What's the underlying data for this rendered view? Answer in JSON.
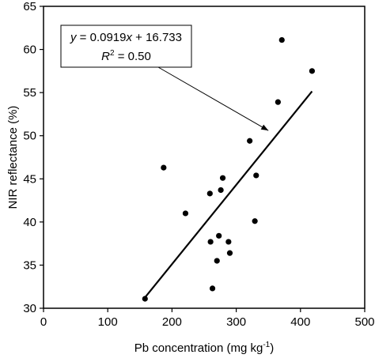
{
  "chart_data": {
    "type": "scatter",
    "title": "",
    "xlabel": "Pb concentration (mg kg",
    "xlabel_superscript": "-1",
    "xlabel_suffix": ")",
    "ylabel": "NIR reflectance (%)",
    "xlim": [
      0,
      500
    ],
    "ylim": [
      30,
      65
    ],
    "xticks": [
      0,
      100,
      200,
      300,
      400,
      500
    ],
    "yticks": [
      30,
      35,
      40,
      45,
      50,
      55,
      60,
      65
    ],
    "grid": false,
    "legend": "none",
    "points": [
      {
        "x": 158,
        "y": 31.1
      },
      {
        "x": 187,
        "y": 46.3
      },
      {
        "x": 221,
        "y": 41.0
      },
      {
        "x": 259,
        "y": 43.3
      },
      {
        "x": 260,
        "y": 37.7
      },
      {
        "x": 263,
        "y": 32.3
      },
      {
        "x": 270,
        "y": 35.5
      },
      {
        "x": 273,
        "y": 38.4
      },
      {
        "x": 276,
        "y": 43.7
      },
      {
        "x": 279,
        "y": 45.1
      },
      {
        "x": 288,
        "y": 37.7
      },
      {
        "x": 290,
        "y": 36.4
      },
      {
        "x": 321,
        "y": 49.4
      },
      {
        "x": 329,
        "y": 40.1
      },
      {
        "x": 331,
        "y": 45.4
      },
      {
        "x": 365,
        "y": 53.9
      },
      {
        "x": 371,
        "y": 61.1
      },
      {
        "x": 418,
        "y": 57.5
      }
    ],
    "trendline": {
      "slope": 0.0919,
      "intercept": 16.733,
      "x_start": 158,
      "x_end": 418
    },
    "annotation": {
      "eq_y": "y",
      "eq_x": "x",
      "eq_main": " = 0.0919",
      "eq_rest": " + 16.733",
      "r2_label": "R",
      "r2_sup": "2",
      "r2_rest": " = 0.50",
      "arrow_target": {
        "x": 350,
        "y": 50.6
      }
    },
    "colors": {
      "marker": "#000000",
      "line": "#000000"
    }
  }
}
